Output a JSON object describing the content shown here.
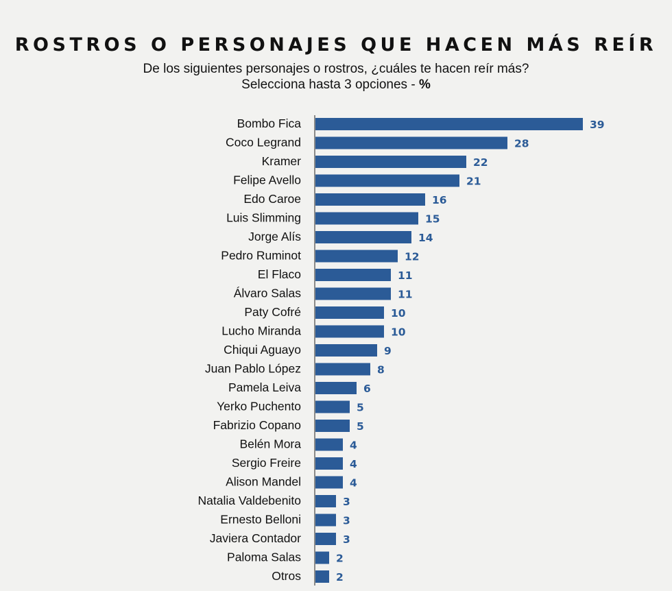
{
  "header": {
    "title": "ROSTROS O PERSONAJES QUE HACEN MÁS REÍR",
    "subtitle_line1": "De los siguientes personajes o rostros, ¿cuáles te hacen reír más?",
    "subtitle_line2": "Selecciona hasta 3 opciones -",
    "subtitle_unit": "%"
  },
  "colors": {
    "bar": "#2b5b97",
    "value_label": "#2b5b97",
    "axis": "#222222"
  },
  "chart_data": {
    "type": "bar",
    "orientation": "horizontal",
    "categories": [
      "Bombo Fica",
      "Coco Legrand",
      "Kramer",
      "Felipe Avello",
      "Edo Caroe",
      "Luis Slimming",
      "Jorge Alís",
      "Pedro Ruminot",
      "El Flaco",
      "Álvaro Salas",
      "Paty Cofré",
      "Lucho Miranda",
      "Chiqui Aguayo",
      "Juan Pablo López",
      "Pamela Leiva",
      "Yerko Puchento",
      "Fabrizio Copano",
      "Belén Mora",
      "Sergio Freire",
      "Alison Mandel",
      "Natalia Valdebenito",
      "Ernesto Belloni",
      "Javiera Contador",
      "Paloma Salas",
      "Otros"
    ],
    "values": [
      39,
      28,
      22,
      21,
      16,
      15,
      14,
      12,
      11,
      11,
      10,
      10,
      9,
      8,
      6,
      5,
      5,
      4,
      4,
      4,
      3,
      3,
      3,
      2,
      2
    ],
    "xlim": [
      0,
      39
    ],
    "grid": false,
    "legend": "none",
    "data_labels": true
  }
}
